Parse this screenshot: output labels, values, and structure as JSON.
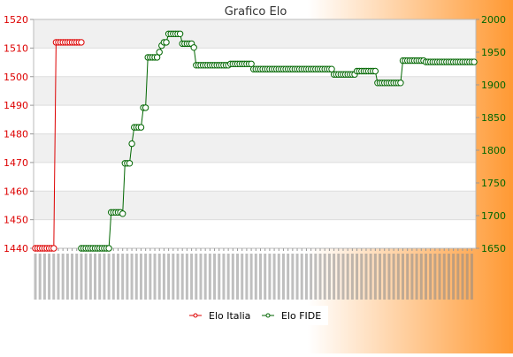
{
  "colors": {
    "background_start": "#ffffff",
    "background_end": "#ff9933",
    "elo_italia": "#dd0000",
    "elo_fide": "#006600",
    "band": "#f0f0f0",
    "title": "#333333"
  },
  "chart_data": {
    "type": "line",
    "title": "Grafico Elo",
    "grid": true,
    "legend_position": "bottom-center",
    "y_left": {
      "min": 1440,
      "max": 1520,
      "ticks": [
        1440,
        1450,
        1460,
        1470,
        1480,
        1490,
        1500,
        1510,
        1520
      ]
    },
    "y_right": {
      "min": 1650,
      "max": 2000,
      "ticks": [
        1650,
        1700,
        1750,
        1800,
        1850,
        1900,
        1950,
        2000
      ]
    },
    "series": [
      {
        "name": "Elo Italia",
        "axis": "left",
        "points": [
          [
            0,
            1440
          ],
          [
            1,
            1440
          ],
          [
            2,
            1440
          ],
          [
            3,
            1440
          ],
          [
            4,
            1440
          ],
          [
            5,
            1440
          ],
          [
            6,
            1440
          ],
          [
            7,
            1440
          ],
          [
            8,
            1440
          ],
          [
            9,
            1512
          ],
          [
            10,
            1512
          ],
          [
            11,
            1512
          ],
          [
            12,
            1512
          ],
          [
            13,
            1512
          ],
          [
            14,
            1512
          ],
          [
            15,
            1512
          ],
          [
            16,
            1512
          ],
          [
            17,
            1512
          ],
          [
            18,
            1512
          ],
          [
            19,
            1512
          ],
          [
            20,
            1512
          ]
        ]
      },
      {
        "name": "Elo FIDE",
        "axis": "right",
        "points": [
          [
            20,
            1650
          ],
          [
            21,
            1650
          ],
          [
            22,
            1650
          ],
          [
            23,
            1650
          ],
          [
            24,
            1650
          ],
          [
            25,
            1650
          ],
          [
            26,
            1650
          ],
          [
            27,
            1650
          ],
          [
            28,
            1650
          ],
          [
            29,
            1650
          ],
          [
            30,
            1650
          ],
          [
            31,
            1650
          ],
          [
            32,
            1650
          ],
          [
            33,
            1705
          ],
          [
            34,
            1705
          ],
          [
            35,
            1705
          ],
          [
            36,
            1705
          ],
          [
            37,
            1705
          ],
          [
            38,
            1703
          ],
          [
            39,
            1780
          ],
          [
            40,
            1780
          ],
          [
            41,
            1780
          ],
          [
            42,
            1810
          ],
          [
            43,
            1835
          ],
          [
            44,
            1835
          ],
          [
            45,
            1835
          ],
          [
            46,
            1835
          ],
          [
            47,
            1865
          ],
          [
            48,
            1865
          ],
          [
            49,
            1942
          ],
          [
            50,
            1942
          ],
          [
            51,
            1942
          ],
          [
            52,
            1942
          ],
          [
            53,
            1942
          ],
          [
            54,
            1950
          ],
          [
            55,
            1960
          ],
          [
            56,
            1965
          ],
          [
            57,
            1965
          ],
          [
            58,
            1978
          ],
          [
            59,
            1978
          ],
          [
            60,
            1978
          ],
          [
            61,
            1978
          ],
          [
            62,
            1978
          ],
          [
            63,
            1978
          ],
          [
            64,
            1963
          ],
          [
            65,
            1963
          ],
          [
            66,
            1963
          ],
          [
            67,
            1963
          ],
          [
            68,
            1963
          ],
          [
            69,
            1957
          ],
          [
            70,
            1930
          ],
          [
            71,
            1930
          ],
          [
            72,
            1930
          ],
          [
            73,
            1930
          ],
          [
            74,
            1930
          ],
          [
            75,
            1930
          ],
          [
            76,
            1930
          ],
          [
            77,
            1930
          ],
          [
            78,
            1930
          ],
          [
            79,
            1930
          ],
          [
            80,
            1930
          ],
          [
            81,
            1930
          ],
          [
            82,
            1930
          ],
          [
            83,
            1930
          ],
          [
            84,
            1930
          ],
          [
            85,
            1932
          ],
          [
            86,
            1932
          ],
          [
            87,
            1932
          ],
          [
            88,
            1932
          ],
          [
            89,
            1932
          ],
          [
            90,
            1932
          ],
          [
            91,
            1932
          ],
          [
            92,
            1932
          ],
          [
            93,
            1932
          ],
          [
            94,
            1932
          ],
          [
            95,
            1924
          ],
          [
            96,
            1924
          ],
          [
            97,
            1924
          ],
          [
            98,
            1924
          ],
          [
            99,
            1924
          ],
          [
            100,
            1924
          ],
          [
            101,
            1924
          ],
          [
            102,
            1924
          ],
          [
            103,
            1924
          ],
          [
            104,
            1924
          ],
          [
            105,
            1924
          ],
          [
            106,
            1924
          ],
          [
            107,
            1924
          ],
          [
            108,
            1924
          ],
          [
            109,
            1924
          ],
          [
            110,
            1924
          ],
          [
            111,
            1924
          ],
          [
            112,
            1924
          ],
          [
            113,
            1924
          ],
          [
            114,
            1924
          ],
          [
            115,
            1924
          ],
          [
            116,
            1924
          ],
          [
            117,
            1924
          ],
          [
            118,
            1924
          ],
          [
            119,
            1924
          ],
          [
            120,
            1924
          ],
          [
            121,
            1924
          ],
          [
            122,
            1924
          ],
          [
            123,
            1924
          ],
          [
            124,
            1924
          ],
          [
            125,
            1924
          ],
          [
            126,
            1924
          ],
          [
            127,
            1924
          ],
          [
            128,
            1924
          ],
          [
            129,
            1924
          ],
          [
            130,
            1916
          ],
          [
            131,
            1916
          ],
          [
            132,
            1916
          ],
          [
            133,
            1916
          ],
          [
            134,
            1916
          ],
          [
            135,
            1916
          ],
          [
            136,
            1916
          ],
          [
            137,
            1916
          ],
          [
            138,
            1916
          ],
          [
            139,
            1916
          ],
          [
            140,
            1921
          ],
          [
            141,
            1921
          ],
          [
            142,
            1921
          ],
          [
            143,
            1921
          ],
          [
            144,
            1921
          ],
          [
            145,
            1921
          ],
          [
            146,
            1921
          ],
          [
            147,
            1921
          ],
          [
            148,
            1921
          ],
          [
            149,
            1903
          ],
          [
            150,
            1903
          ],
          [
            151,
            1903
          ],
          [
            152,
            1903
          ],
          [
            153,
            1903
          ],
          [
            154,
            1903
          ],
          [
            155,
            1903
          ],
          [
            156,
            1903
          ],
          [
            157,
            1903
          ],
          [
            158,
            1903
          ],
          [
            159,
            1903
          ],
          [
            160,
            1937
          ],
          [
            161,
            1937
          ],
          [
            162,
            1937
          ],
          [
            163,
            1937
          ],
          [
            164,
            1937
          ],
          [
            165,
            1937
          ],
          [
            166,
            1937
          ],
          [
            167,
            1937
          ],
          [
            168,
            1937
          ],
          [
            169,
            1937
          ],
          [
            170,
            1935
          ],
          [
            171,
            1935
          ],
          [
            172,
            1935
          ],
          [
            173,
            1935
          ],
          [
            174,
            1935
          ],
          [
            175,
            1935
          ],
          [
            176,
            1935
          ],
          [
            177,
            1935
          ],
          [
            178,
            1935
          ],
          [
            179,
            1935
          ],
          [
            180,
            1935
          ],
          [
            181,
            1935
          ],
          [
            182,
            1935
          ],
          [
            183,
            1935
          ],
          [
            184,
            1935
          ],
          [
            185,
            1935
          ],
          [
            186,
            1935
          ],
          [
            187,
            1935
          ],
          [
            188,
            1935
          ],
          [
            189,
            1935
          ],
          [
            190,
            1935
          ],
          [
            191,
            1935
          ]
        ]
      }
    ]
  }
}
